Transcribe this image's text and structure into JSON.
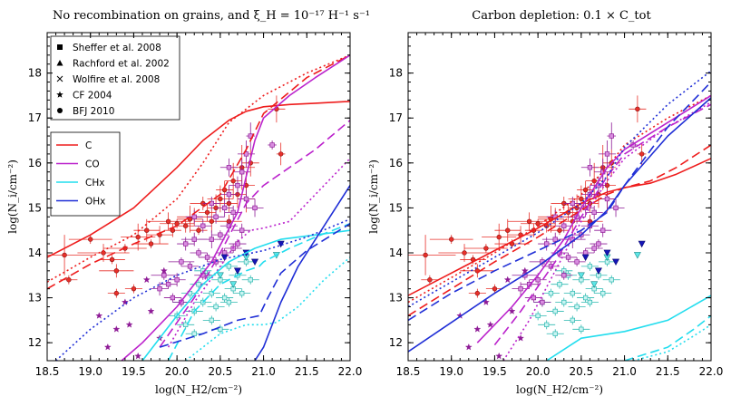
{
  "figure": {
    "panels_count": 2
  },
  "colors": {
    "C": "#ee1c1c",
    "CO": "#bb22cc",
    "CHx": "#22ddee",
    "OHx": "#1f2ed6",
    "obs_C": "#e8302a",
    "obs_CO": "#8e1a96",
    "obs_CHx": "#2bb8b0",
    "obs_OHx": "#1515b8"
  },
  "chart_data": [
    {
      "type": "line",
      "title": "No recombination on grains, and ξ_H = 10⁻¹⁷ H⁻¹ s⁻¹",
      "xlabel": "log(N_H2/cm⁻²)",
      "ylabel": "log(N_i/cm⁻²)",
      "xlim": [
        18.5,
        22.0
      ],
      "ylim": [
        11.6,
        18.9
      ],
      "xticks": [
        "18.5",
        "19.0",
        "19.5",
        "20.0",
        "20.5",
        "21.0",
        "21.5",
        "22.0"
      ],
      "yticks": [
        "12",
        "13",
        "14",
        "15",
        "16",
        "17",
        "18"
      ],
      "legend_markers": [
        {
          "symbol": "square",
          "label": "Sheffer et al. 2008"
        },
        {
          "symbol": "triangle",
          "label": "Rachford et al. 2002"
        },
        {
          "symbol": "cross",
          "label": "Wolfire et al. 2008"
        },
        {
          "symbol": "star",
          "label": "CF 2004"
        },
        {
          "symbol": "circle",
          "label": "BFJ 2010"
        }
      ],
      "legend_lines": [
        {
          "key": "C",
          "label": "C"
        },
        {
          "key": "CO",
          "label": "CO"
        },
        {
          "key": "CHx",
          "label": "CHx"
        },
        {
          "key": "OHx",
          "label": "OHx"
        }
      ],
      "series": [
        {
          "name": "C",
          "style": "solid",
          "x": [
            18.5,
            19.0,
            19.5,
            20.0,
            20.3,
            20.6,
            20.8,
            21.0,
            21.3,
            21.6,
            22.0
          ],
          "y": [
            13.9,
            14.4,
            15.0,
            15.9,
            16.5,
            16.95,
            17.15,
            17.25,
            17.3,
            17.33,
            17.37
          ]
        },
        {
          "name": "C",
          "style": "dashed",
          "x": [
            18.5,
            19.0,
            19.5,
            20.0,
            20.5,
            20.8,
            21.0,
            21.5,
            22.0
          ],
          "y": [
            13.2,
            13.75,
            14.2,
            14.6,
            15.3,
            16.3,
            17.1,
            17.9,
            18.4
          ]
        },
        {
          "name": "C",
          "style": "dotted",
          "x": [
            18.5,
            19.0,
            19.5,
            20.0,
            20.3,
            20.6,
            20.8,
            21.0,
            21.5,
            22.0
          ],
          "y": [
            13.35,
            13.9,
            14.4,
            15.2,
            16.0,
            16.9,
            17.2,
            17.5,
            18.0,
            18.4
          ]
        },
        {
          "name": "CO",
          "style": "solid",
          "x": [
            18.8,
            19.3,
            19.6,
            20.0,
            20.4,
            20.7,
            20.9,
            21.0,
            21.3,
            21.6,
            22.0
          ],
          "y": [
            10.8,
            11.5,
            12.0,
            12.8,
            13.8,
            14.9,
            16.5,
            17.0,
            17.5,
            17.9,
            18.4
          ]
        },
        {
          "name": "CO",
          "style": "dashed",
          "x": [
            19.8,
            20.2,
            20.5,
            20.8,
            21.0,
            21.3,
            21.6,
            22.0
          ],
          "y": [
            11.9,
            13.0,
            14.0,
            15.1,
            15.5,
            15.9,
            16.3,
            16.95
          ]
        },
        {
          "name": "CO",
          "style": "dotted",
          "x": [
            19.9,
            20.2,
            20.5,
            20.7,
            20.85,
            21.0,
            21.3,
            21.6,
            22.0
          ],
          "y": [
            11.9,
            12.9,
            13.7,
            14.25,
            14.5,
            14.55,
            14.7,
            15.3,
            16.1
          ]
        },
        {
          "name": "CHx",
          "style": "solid",
          "x": [
            19.6,
            20.0,
            20.3,
            20.6,
            20.9,
            21.2,
            21.6,
            22.0
          ],
          "y": [
            11.6,
            12.6,
            13.3,
            13.8,
            14.1,
            14.3,
            14.4,
            14.5
          ]
        },
        {
          "name": "CHx",
          "style": "dashed",
          "x": [
            19.9,
            20.2,
            20.5,
            20.8,
            20.95,
            21.0,
            21.3,
            21.6,
            22.0
          ],
          "y": [
            11.6,
            12.7,
            13.3,
            13.6,
            13.7,
            13.8,
            14.1,
            14.35,
            14.65
          ]
        },
        {
          "name": "CHx",
          "style": "dotted",
          "x": [
            20.1,
            20.5,
            20.8,
            21.0,
            21.15,
            21.4,
            21.7,
            22.0
          ],
          "y": [
            11.6,
            12.2,
            12.4,
            12.4,
            12.45,
            12.8,
            13.4,
            13.9
          ]
        },
        {
          "name": "OHx",
          "style": "solid",
          "x": [
            20.9,
            21.0,
            21.2,
            21.4,
            21.7,
            22.0
          ],
          "y": [
            11.6,
            11.9,
            12.9,
            13.7,
            14.6,
            15.5
          ]
        },
        {
          "name": "OHx",
          "style": "dashed",
          "x": [
            19.8,
            20.3,
            20.7,
            20.95,
            21.05,
            21.2,
            21.5,
            22.0
          ],
          "y": [
            11.9,
            12.2,
            12.5,
            12.6,
            13.0,
            13.55,
            14.05,
            14.65
          ]
        },
        {
          "name": "OHx",
          "style": "dotted",
          "x": [
            18.6,
            19.0,
            19.5,
            20.0,
            20.5,
            21.0,
            21.5,
            22.0
          ],
          "y": [
            11.6,
            12.3,
            13.0,
            13.5,
            13.85,
            14.05,
            14.35,
            14.75
          ]
        }
      ]
    },
    {
      "type": "line",
      "title": "Carbon depletion: 0.1 × C_tot",
      "xlabel": "log(N_H2/cm⁻²)",
      "ylabel": "log(N_i/cm⁻²)",
      "xlim": [
        18.5,
        22.0
      ],
      "ylim": [
        11.6,
        18.9
      ],
      "xticks": [
        "18.5",
        "19.0",
        "19.5",
        "20.0",
        "20.5",
        "21.0",
        "21.5",
        "22.0"
      ],
      "yticks": [
        "12",
        "13",
        "14",
        "15",
        "16",
        "17",
        "18"
      ],
      "series": [
        {
          "name": "C",
          "style": "solid",
          "x": [
            18.5,
            19.0,
            19.5,
            20.0,
            20.5,
            20.8,
            21.0,
            21.3,
            21.6,
            22.0
          ],
          "y": [
            13.05,
            13.55,
            14.05,
            14.55,
            15.1,
            15.35,
            15.45,
            15.55,
            15.75,
            16.1
          ]
        },
        {
          "name": "C",
          "style": "dashed",
          "x": [
            18.5,
            19.0,
            19.5,
            20.0,
            20.5,
            20.8,
            21.0,
            21.3,
            21.6,
            22.0
          ],
          "y": [
            12.6,
            13.2,
            13.8,
            14.35,
            14.95,
            15.3,
            15.45,
            15.6,
            15.9,
            16.4
          ]
        },
        {
          "name": "C",
          "style": "dotted",
          "x": [
            18.5,
            19.0,
            19.5,
            20.0,
            20.5,
            20.8,
            21.0,
            21.5,
            22.0
          ],
          "y": [
            12.9,
            13.45,
            14.0,
            14.6,
            15.3,
            15.9,
            16.4,
            17.0,
            17.5
          ]
        },
        {
          "name": "CO",
          "style": "solid",
          "x": [
            19.3,
            19.7,
            20.0,
            20.3,
            20.5,
            20.8,
            21.0,
            21.5,
            22.0
          ],
          "y": [
            12.0,
            12.8,
            13.5,
            14.3,
            15.0,
            15.9,
            16.3,
            16.9,
            17.5
          ]
        },
        {
          "name": "CO",
          "style": "dashed",
          "x": [
            19.5,
            19.8,
            20.2,
            20.5,
            20.8,
            21.0,
            21.5,
            22.0
          ],
          "y": [
            11.95,
            12.7,
            13.8,
            14.8,
            15.7,
            16.2,
            16.8,
            17.3
          ]
        },
        {
          "name": "CO",
          "style": "dotted",
          "x": [
            19.6,
            19.9,
            20.2,
            20.5,
            20.8,
            21.0,
            21.5,
            22.0
          ],
          "y": [
            11.6,
            12.5,
            13.6,
            14.7,
            15.6,
            16.1,
            16.8,
            17.35
          ]
        },
        {
          "name": "CHx",
          "style": "solid",
          "x": [
            20.1,
            20.5,
            21.0,
            21.5,
            22.0
          ],
          "y": [
            11.6,
            12.1,
            12.25,
            12.5,
            13.05
          ]
        },
        {
          "name": "CHx",
          "style": "dashed",
          "x": [
            21.0,
            21.5,
            21.8,
            22.0
          ],
          "y": [
            11.6,
            11.9,
            12.3,
            12.6
          ]
        },
        {
          "name": "CHx",
          "style": "dotted",
          "x": [
            21.1,
            21.5,
            21.8,
            22.0
          ],
          "y": [
            11.6,
            11.8,
            12.15,
            12.4
          ]
        },
        {
          "name": "OHx",
          "style": "solid",
          "x": [
            18.5,
            19.0,
            19.5,
            20.0,
            20.5,
            20.8,
            21.0,
            21.5,
            22.0
          ],
          "y": [
            11.8,
            12.45,
            13.1,
            13.7,
            14.4,
            14.95,
            15.5,
            16.6,
            17.45
          ]
        },
        {
          "name": "OHx",
          "style": "dashed",
          "x": [
            18.5,
            19.0,
            19.5,
            20.0,
            20.5,
            20.8,
            21.0,
            21.5,
            22.0
          ],
          "y": [
            12.5,
            13.1,
            13.6,
            14.05,
            14.5,
            14.9,
            15.5,
            16.8,
            17.8
          ]
        },
        {
          "name": "OHx",
          "style": "dotted",
          "x": [
            18.5,
            19.0,
            19.5,
            20.0,
            20.5,
            20.8,
            21.0,
            21.5,
            22.0
          ],
          "y": [
            12.8,
            13.35,
            13.9,
            14.45,
            15.1,
            15.7,
            16.35,
            17.3,
            18.05
          ]
        }
      ]
    }
  ],
  "observations": {
    "C": {
      "marker": "circle",
      "x": [
        18.7,
        18.75,
        19.0,
        19.15,
        19.25,
        19.3,
        19.4,
        19.55,
        19.65,
        19.7,
        19.8,
        19.9,
        19.95,
        20.0,
        20.1,
        20.15,
        20.2,
        20.25,
        20.3,
        20.35,
        20.4,
        20.45,
        20.5,
        20.55,
        20.6,
        20.6,
        20.65,
        20.7,
        20.75,
        20.8,
        20.8,
        20.85,
        21.15,
        21.2,
        19.3,
        19.5
      ],
      "y": [
        13.95,
        13.4,
        14.3,
        14.0,
        13.85,
        13.6,
        14.1,
        14.35,
        14.5,
        14.2,
        14.4,
        14.7,
        14.5,
        14.65,
        14.6,
        14.75,
        14.8,
        14.5,
        15.1,
        14.9,
        14.7,
        15.0,
        15.2,
        15.4,
        15.1,
        14.7,
        15.6,
        15.3,
        15.9,
        15.2,
        15.5,
        16.0,
        17.2,
        16.2,
        13.1,
        13.2
      ],
      "xerr": [
        0.35,
        0.1,
        0.25,
        0.3,
        0.15,
        0.2,
        0.25,
        0.2,
        0.15,
        0.2,
        0.15,
        0.25,
        0.1,
        0.2,
        0.1,
        0.15,
        0.2,
        0.1,
        0.15,
        0.1,
        0.2,
        0.1,
        0.15,
        0.1,
        0.1,
        0.15,
        0.1,
        0.1,
        0.15,
        0.1,
        0.1,
        0.1,
        0.1,
        0.05,
        0.1,
        0.1
      ],
      "yerr": [
        0.45,
        0.1,
        0.1,
        0.2,
        0.1,
        0.15,
        0.1,
        0.3,
        0.25,
        0.1,
        0.2,
        0.2,
        0.15,
        0.1,
        0.15,
        0.3,
        0.2,
        0.1,
        0.15,
        0.2,
        0.25,
        0.3,
        0.3,
        0.2,
        0.2,
        0.15,
        0.4,
        0.3,
        0.5,
        0.3,
        0.3,
        0.3,
        0.3,
        0.25,
        0.1,
        0.1
      ]
    },
    "CO": {
      "marker": "square",
      "x": [
        19.8,
        19.85,
        19.95,
        20.0,
        20.05,
        20.1,
        20.15,
        20.2,
        20.25,
        20.3,
        20.35,
        20.4,
        20.45,
        20.5,
        20.55,
        20.6,
        20.6,
        20.65,
        20.7,
        20.7,
        20.75,
        20.8,
        20.8,
        20.85,
        20.9,
        21.1,
        20.3,
        20.45,
        20.55,
        20.65,
        20.75,
        20.2,
        20.4,
        20.6,
        19.9,
        20.05
      ],
      "y": [
        13.2,
        13.5,
        13.0,
        13.4,
        13.8,
        14.2,
        13.7,
        14.3,
        14.0,
        14.6,
        13.9,
        14.3,
        14.8,
        14.4,
        15.0,
        14.6,
        15.3,
        14.9,
        15.5,
        14.2,
        15.8,
        15.2,
        16.2,
        16.6,
        15.0,
        16.4,
        13.5,
        13.8,
        14.0,
        14.1,
        14.5,
        14.8,
        15.1,
        15.9,
        13.3,
        12.9
      ],
      "xerr": [
        0.1,
        0.15,
        0.1,
        0.1,
        0.15,
        0.1,
        0.1,
        0.15,
        0.1,
        0.1,
        0.1,
        0.15,
        0.1,
        0.1,
        0.1,
        0.1,
        0.1,
        0.1,
        0.1,
        0.1,
        0.1,
        0.1,
        0.1,
        0.05,
        0.1,
        0.05,
        0.1,
        0.1,
        0.1,
        0.1,
        0.1,
        0.1,
        0.1,
        0.1,
        0.1,
        0.1
      ],
      "yerr": [
        0.15,
        0.1,
        0.1,
        0.15,
        0.1,
        0.15,
        0.1,
        0.15,
        0.1,
        0.15,
        0.1,
        0.2,
        0.15,
        0.1,
        0.2,
        0.15,
        0.2,
        0.15,
        0.2,
        0.1,
        0.3,
        0.2,
        0.3,
        0.3,
        0.2,
        0.1,
        0.1,
        0.1,
        0.1,
        0.1,
        0.15,
        0.15,
        0.15,
        0.2,
        0.1,
        0.1
      ]
    },
    "CO_stars": {
      "marker": "star",
      "x": [
        19.1,
        19.2,
        19.3,
        19.4,
        19.45,
        19.55,
        19.65,
        19.7,
        19.8,
        19.85
      ],
      "y": [
        12.6,
        11.9,
        12.3,
        12.9,
        12.4,
        11.7,
        13.4,
        12.7,
        12.1,
        13.6
      ]
    },
    "CHx": {
      "marker": "square",
      "x": [
        20.0,
        20.05,
        20.1,
        20.15,
        20.2,
        20.25,
        20.3,
        20.35,
        20.4,
        20.45,
        20.5,
        20.55,
        20.6,
        20.65,
        20.7,
        20.75,
        20.8,
        20.85,
        20.4,
        20.5,
        20.6,
        20.2,
        20.3
      ],
      "y": [
        12.6,
        12.9,
        12.4,
        13.1,
        12.7,
        13.3,
        12.9,
        13.5,
        13.1,
        12.8,
        13.4,
        13.0,
        13.7,
        13.2,
        13.5,
        13.1,
        13.8,
        13.4,
        12.5,
        12.3,
        12.9,
        12.2,
        13.6
      ],
      "xerr": [
        0.1,
        0.1,
        0.1,
        0.1,
        0.1,
        0.1,
        0.1,
        0.1,
        0.1,
        0.1,
        0.1,
        0.1,
        0.1,
        0.1,
        0.1,
        0.1,
        0.1,
        0.1,
        0.1,
        0.1,
        0.1,
        0.1,
        0.1
      ],
      "yerr": [
        0.1,
        0.1,
        0.1,
        0.1,
        0.1,
        0.1,
        0.1,
        0.1,
        0.1,
        0.1,
        0.1,
        0.1,
        0.1,
        0.1,
        0.1,
        0.1,
        0.1,
        0.1,
        0.1,
        0.1,
        0.1,
        0.1,
        0.1
      ]
    },
    "CHx_triangles": {
      "marker": "triangle-down",
      "x": [
        20.5,
        20.65,
        20.8,
        21.15
      ],
      "y": [
        13.5,
        13.3,
        13.9,
        13.95
      ]
    },
    "OHx_triangles": {
      "marker": "triangle-down",
      "x": [
        20.55,
        20.7,
        20.8,
        20.9,
        21.2
      ],
      "y": [
        13.9,
        13.6,
        14.0,
        13.8,
        14.2
      ]
    }
  }
}
